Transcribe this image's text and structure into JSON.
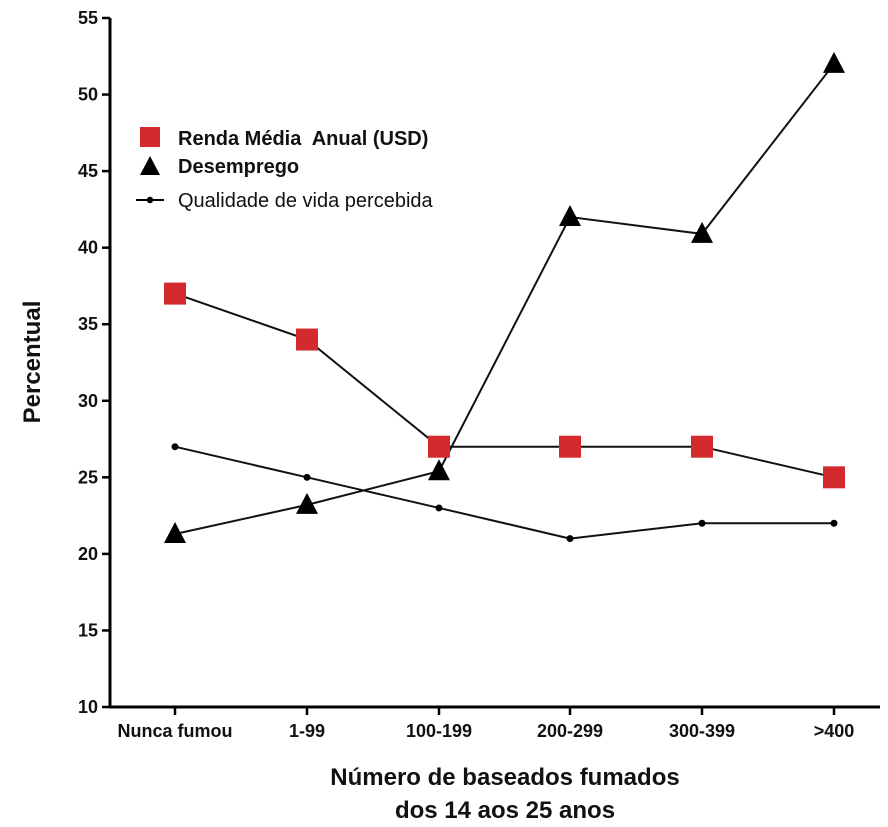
{
  "chart_data": {
    "type": "line",
    "title": "",
    "xlabel": [
      "Número de baseados fumados",
      "dos 14 aos 25 anos"
    ],
    "ylabel": "Percentual",
    "categories": [
      "Nunca fumou",
      "1-99",
      "100-199",
      "200-299",
      "300-399",
      ">400"
    ],
    "ylim": [
      10,
      55
    ],
    "yticks": [
      "10",
      "15",
      "20",
      "25",
      "30",
      "35",
      "40",
      "45",
      "50",
      "55"
    ],
    "grid": false,
    "legend_position": "top-left",
    "series": [
      {
        "name": "Renda Média  Anual (USD)",
        "marker": "square",
        "color": "#d42a2e",
        "values": [
          37,
          34,
          27,
          27,
          27,
          25
        ]
      },
      {
        "name": "Desemprego",
        "marker": "triangle",
        "color": "#000000",
        "values": [
          21.3,
          23.2,
          25.4,
          42,
          40.9,
          52
        ]
      },
      {
        "name": "Qualidade de vida percebida",
        "marker": "dot",
        "color": "#000000",
        "values": [
          27,
          25,
          23,
          21,
          22,
          22
        ]
      }
    ]
  }
}
